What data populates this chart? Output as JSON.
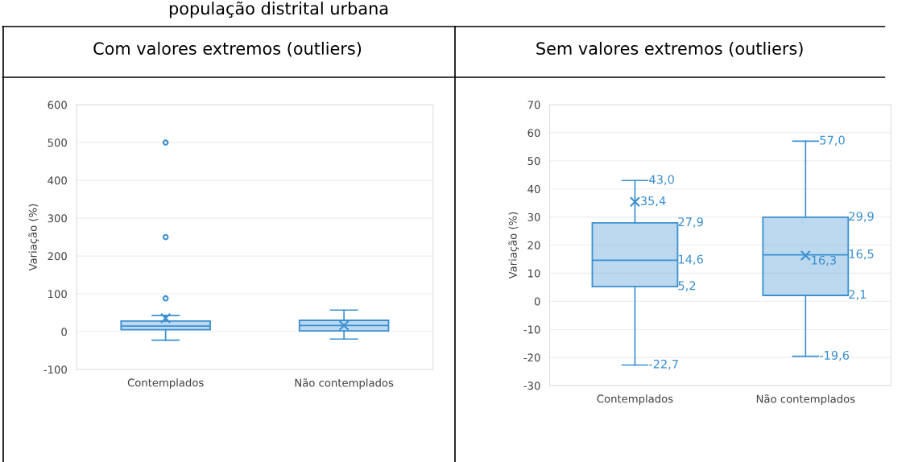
{
  "chart_data": [
    {
      "type": "box",
      "title": "Com valores extremos (outliers)",
      "ylabel": "Variação (%)",
      "categories": [
        "Contemplados",
        "Não contemplados"
      ],
      "boxes": [
        {
          "low": -22.7,
          "q1": 5.2,
          "median": 14.6,
          "q3": 27.9,
          "high": 43.0,
          "mean": 35.4,
          "outliers": [
            500,
            250,
            88
          ]
        },
        {
          "low": -19.6,
          "q1": 2.1,
          "median": 16.5,
          "q3": 29.9,
          "high": 57.0,
          "mean": 16.3
        }
      ],
      "color": "#3b8fd1",
      "ylim": [
        -100,
        600
      ],
      "yticks": [
        -100,
        0,
        100,
        200,
        300,
        400,
        500,
        600
      ],
      "grid": "y",
      "annotations": [
        "população distrital urbana"
      ]
    },
    {
      "type": "box",
      "title": "Sem valores extremos (outliers)",
      "ylabel": "Variação (%)",
      "categories": [
        "Contemplados",
        "Não contemplados"
      ],
      "boxes": [
        {
          "low": -22.7,
          "q1": 5.2,
          "median": 14.6,
          "q3": 27.9,
          "high": 43.0,
          "mean": 35.4
        },
        {
          "low": -19.6,
          "q1": 2.1,
          "median": 16.5,
          "q3": 29.9,
          "high": 57.0,
          "mean": 16.3
        }
      ],
      "color": "#3b8fd1",
      "ylim": [
        -30,
        70
      ],
      "yticks": [
        -30,
        -20,
        -10,
        0,
        10,
        20,
        30,
        40,
        50,
        60,
        70
      ],
      "grid": "y",
      "value_labels": [
        {
          "high": "43,0",
          "q3": "27,9",
          "median": "14,6",
          "q1": "5,2",
          "low": "-22,7",
          "mean": "35,4"
        },
        {
          "high": "57,0",
          "q3": "29,9",
          "median": "16,5",
          "q1": "2,1",
          "low": "-19,6",
          "mean": "16,3"
        }
      ]
    }
  ]
}
